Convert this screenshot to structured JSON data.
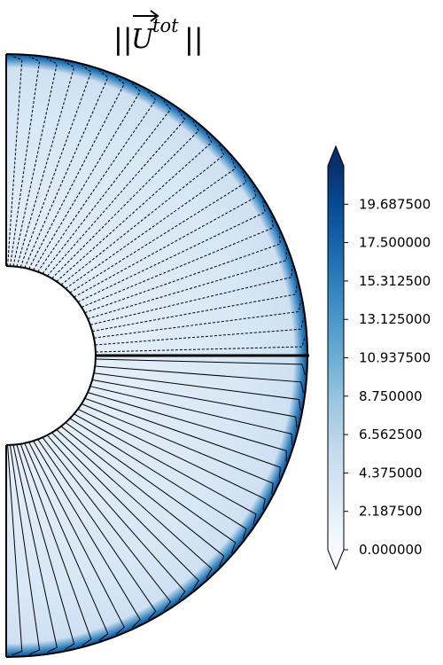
{
  "chart_data": {
    "type": "heatmap",
    "title": {
      "norm_left": "||",
      "symbol": "U",
      "superscript": "tot",
      "norm_right": "||"
    },
    "colormap": "Blues",
    "colorbar": {
      "vmin": 0.0,
      "vmax": 21.875,
      "extend": "both",
      "ticks": [
        {
          "value": 0.0,
          "label": "0.000000"
        },
        {
          "value": 2.1875,
          "label": "2.187500"
        },
        {
          "value": 4.375,
          "label": "4.375000"
        },
        {
          "value": 6.5625,
          "label": "6.562500"
        },
        {
          "value": 8.75,
          "label": "8.750000"
        },
        {
          "value": 10.9375,
          "label": "10.937500"
        },
        {
          "value": 13.125,
          "label": "13.125000"
        },
        {
          "value": 15.3125,
          "label": "15.312500"
        },
        {
          "value": 17.5,
          "label": "17.500000"
        },
        {
          "value": 19.6875,
          "label": "19.687500"
        }
      ]
    },
    "domain": {
      "shape": "half-annulus",
      "inner_radius": 1.0,
      "outer_radius": 3.37,
      "field": {
        "core_value": 2.0,
        "mid_value": 3.5,
        "boundary_layer_value": 15.0
      },
      "streamlines_upper_count": 26,
      "streamlines_lower_count": 26,
      "upper_style": "dashed",
      "lower_style": "solid"
    },
    "colors": {
      "cmap_stops": [
        "#f7fbff",
        "#deebf7",
        "#c6dbef",
        "#9ecae1",
        "#6baed6",
        "#4292c6",
        "#2171b5",
        "#08519c",
        "#08306b"
      ]
    }
  }
}
